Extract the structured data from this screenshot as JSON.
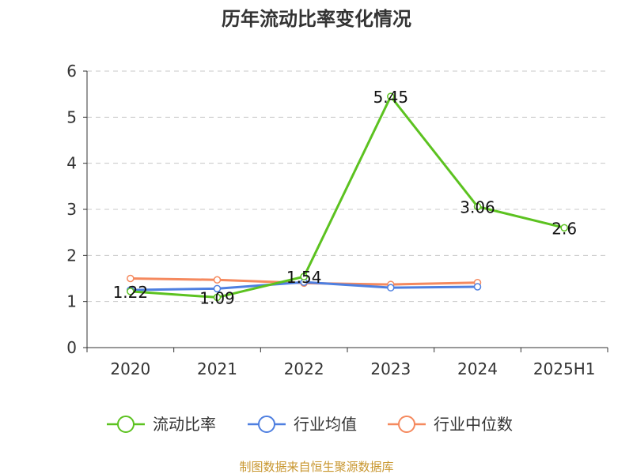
{
  "chart_data": {
    "type": "line",
    "title": "历年流动比率变化情况",
    "categories": [
      "2020",
      "2021",
      "2022",
      "2023",
      "2024",
      "2025H1"
    ],
    "series": [
      {
        "name": "流动比率",
        "color": "#5cc220",
        "values": [
          1.22,
          1.09,
          1.54,
          5.45,
          3.06,
          2.6
        ],
        "labels": [
          "1.22",
          "1.09",
          "1.54",
          "5.45",
          "3.06",
          "2.6"
        ]
      },
      {
        "name": "行业均值",
        "color": "#4e7fe0",
        "values": [
          1.25,
          1.28,
          1.42,
          1.3,
          1.32,
          null
        ]
      },
      {
        "name": "行业中位数",
        "color": "#f5895e",
        "values": [
          1.5,
          1.47,
          1.4,
          1.37,
          1.41,
          null
        ]
      }
    ],
    "yticks": [
      0,
      1,
      2,
      3,
      4,
      5,
      6
    ],
    "ylim": [
      0,
      6
    ],
    "grid": true,
    "legend": "bottom",
    "xlabel": "",
    "ylabel": ""
  },
  "source": {
    "text": "制图数据来自恒生聚源数据库",
    "color": "#c8962e"
  }
}
